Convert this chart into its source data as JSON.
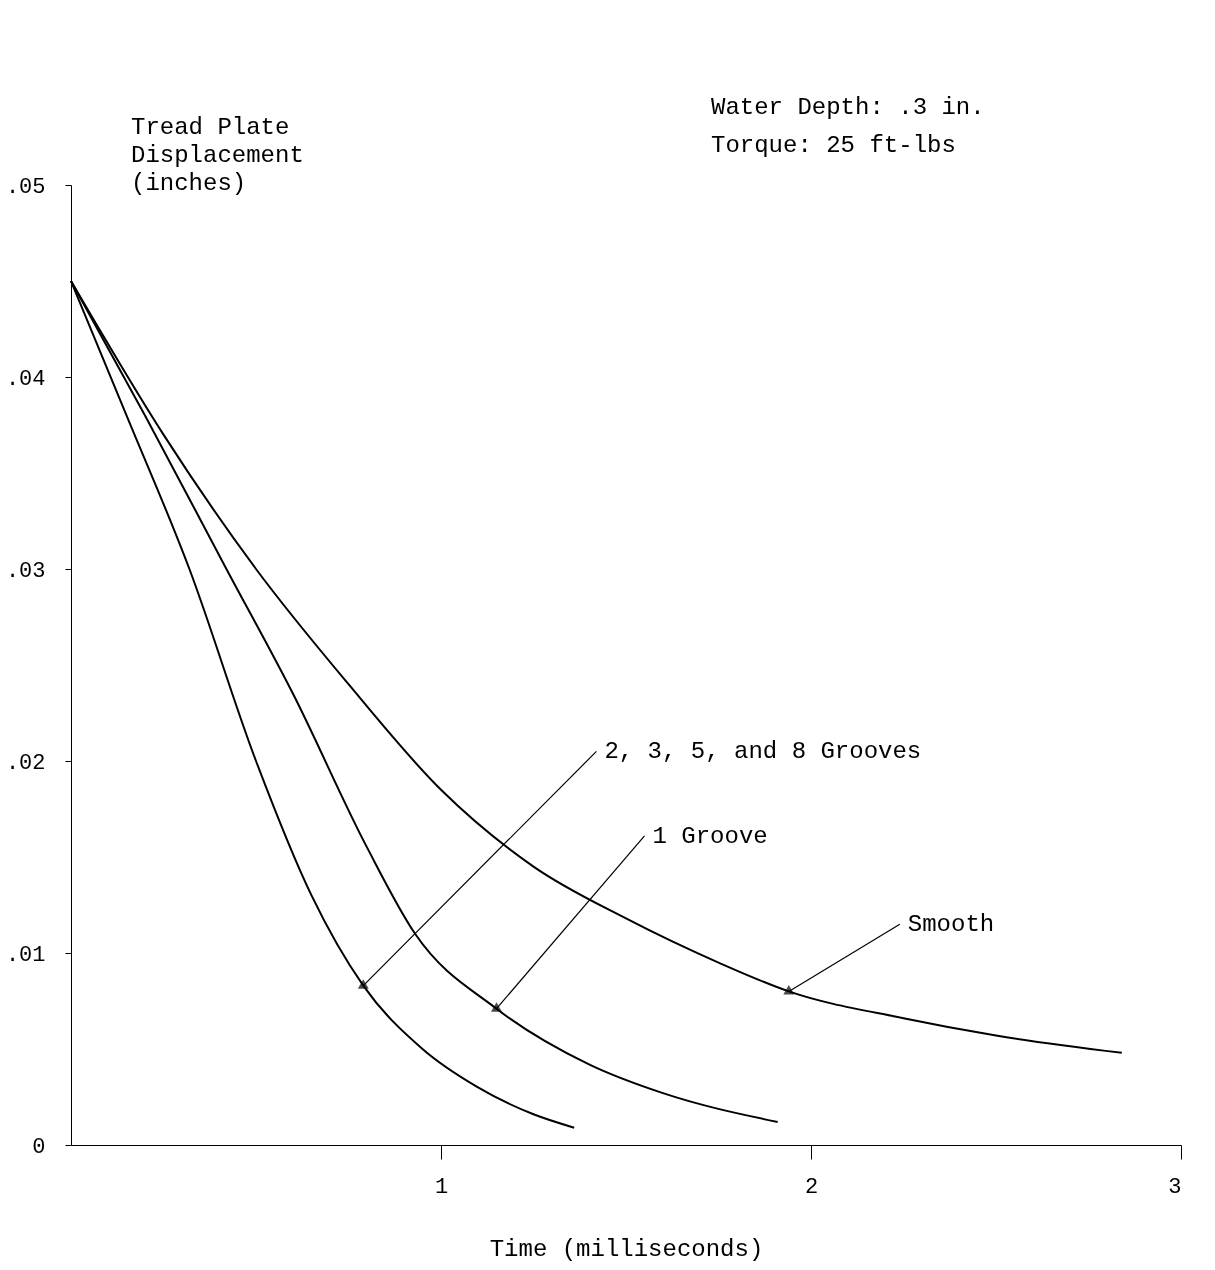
{
  "chart_data": {
    "type": "line",
    "ylabel": "Tread Plate Displacement (inches)",
    "xlabel": "Time (milliseconds)",
    "annotations": [
      "Water Depth: .3 in.",
      "Torque:      25 ft-lbs"
    ],
    "xlim": [
      0,
      3
    ],
    "ylim": [
      0,
      0.05
    ],
    "xticks": [
      1,
      2,
      3
    ],
    "yticks": [
      0,
      {
        "value": 0.01,
        "label": ".01"
      },
      {
        "value": 0.02,
        "label": ".02"
      },
      {
        "value": 0.03,
        "label": ".03"
      },
      {
        "value": 0.04,
        "label": ".04"
      },
      {
        "value": 0.05,
        "label": ".05"
      }
    ],
    "grid": false,
    "marker": "none",
    "line_style": "solid",
    "series": [
      {
        "name": "2, 3, 5, and 8 Grooves",
        "color": "#000000",
        "x": [
          0,
          0.15,
          0.32,
          0.5,
          0.65,
          0.79,
          0.95,
          1.1,
          1.25,
          1.36
        ],
        "values": [
          0.045,
          0.038,
          0.03,
          0.02,
          0.013,
          0.0083,
          0.005,
          0.003,
          0.0016,
          0.0009
        ]
      },
      {
        "name": "1 Groove",
        "color": "#000000",
        "x": [
          0,
          0.2,
          0.42,
          0.6,
          0.8,
          0.93,
          1.15,
          1.4,
          1.6,
          1.91
        ],
        "values": [
          0.045,
          0.038,
          0.03,
          0.0235,
          0.0155,
          0.011,
          0.0071,
          0.0042,
          0.0027,
          0.0012
        ]
      },
      {
        "name": "Smooth",
        "color": "#000000",
        "x": [
          0,
          0.25,
          0.5,
          0.75,
          1.0,
          1.25,
          1.5,
          1.75,
          1.94,
          2.25,
          2.5,
          2.84
        ],
        "values": [
          0.045,
          0.037,
          0.03,
          0.024,
          0.0185,
          0.0145,
          0.0118,
          0.0095,
          0.008,
          0.0066,
          0.0057,
          0.0048
        ]
      }
    ]
  }
}
